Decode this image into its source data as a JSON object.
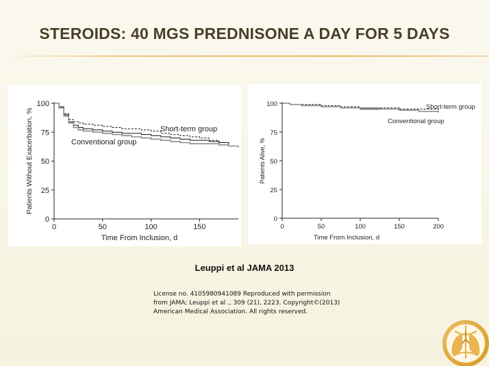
{
  "slide": {
    "title": "STEROIDS: 40 MGS PREDNISONE A DAY FOR 5 DAYS",
    "citation": "Leuppi et al JAMA 2013",
    "license_lines": [
      "License no. 4105980941089   Reproduced with permission",
      "from JAMA; Leuppi et al ., 309  (21), 2223.  Copyright©(2013)",
      "American Medical Association. All rights reserved."
    ],
    "logo_icon": "globe-lungs-logo-icon",
    "colors": {
      "title": "#4a3e28",
      "accent_rule": "#e8b560",
      "logo_gold": "#e2ad44"
    }
  },
  "chart_data": [
    {
      "type": "line",
      "title": "",
      "xlabel": "Time From Inclusion, d",
      "ylabel": "Patients Without Exacerbation, %",
      "xlim": [
        0,
        190
      ],
      "ylim": [
        0,
        100
      ],
      "x_ticks": [
        0,
        50,
        100,
        150
      ],
      "y_ticks": [
        0,
        25,
        50,
        75,
        100
      ],
      "grid": false,
      "series": [
        {
          "name": "Short-term group",
          "style": "dashed",
          "color": "#111111",
          "x": [
            0,
            5,
            10,
            15,
            20,
            25,
            30,
            40,
            50,
            60,
            70,
            80,
            90,
            100,
            110,
            120,
            130,
            140,
            150,
            160,
            170,
            180,
            190
          ],
          "y": [
            100,
            97,
            91,
            86,
            84,
            83,
            82,
            81,
            80,
            79,
            78,
            78,
            77,
            76,
            74,
            73,
            72,
            71,
            70,
            68,
            66,
            63,
            62
          ]
        },
        {
          "name": "Conventional group",
          "style": "solid",
          "color": "#111111",
          "x": [
            0,
            5,
            10,
            15,
            20,
            25,
            30,
            40,
            50,
            60,
            70,
            80,
            90,
            100,
            110,
            120,
            130,
            140,
            150,
            160,
            170,
            180,
            190
          ],
          "y": [
            100,
            97,
            90,
            84,
            81,
            79,
            78,
            77,
            76,
            75,
            74,
            74,
            73,
            72,
            71,
            70,
            69,
            68,
            68,
            67,
            66,
            63,
            62
          ]
        },
        {
          "name": "",
          "style": "solid",
          "color": "#8a8a8a",
          "x": [
            0,
            5,
            10,
            15,
            20,
            25,
            30,
            40,
            50,
            60,
            70,
            80,
            90,
            100,
            110,
            120,
            130,
            140,
            150,
            160,
            170,
            180,
            190
          ],
          "y": [
            100,
            96,
            89,
            83,
            79,
            77,
            76,
            75,
            74,
            73,
            72,
            71,
            70,
            69,
            68,
            67,
            66,
            65,
            65,
            65,
            64,
            63,
            62
          ]
        }
      ],
      "legend": [
        {
          "text": "Short-term group",
          "placement": "upper-right"
        },
        {
          "text": "Conventional group",
          "placement": "middle-left"
        }
      ]
    },
    {
      "type": "line",
      "title": "",
      "xlabel": "Time From Inclusion, d",
      "ylabel": "Patients Alive, %",
      "xlim": [
        0,
        200
      ],
      "ylim": [
        0,
        100
      ],
      "x_ticks": [
        0,
        50,
        100,
        150,
        200
      ],
      "y_ticks": [
        0,
        25,
        50,
        75,
        100
      ],
      "grid": false,
      "series": [
        {
          "name": "Short-term group",
          "style": "dashed",
          "color": "#111111",
          "x": [
            0,
            10,
            25,
            50,
            75,
            100,
            125,
            150,
            175,
            200
          ],
          "y": [
            100,
            99,
            99,
            98,
            97,
            96,
            96,
            95,
            95,
            94
          ]
        },
        {
          "name": "Conventional group",
          "style": "solid",
          "color": "#111111",
          "x": [
            0,
            10,
            25,
            50,
            75,
            100,
            125,
            150,
            175,
            200
          ],
          "y": [
            100,
            99,
            98,
            97,
            96,
            95,
            95,
            94,
            93,
            92
          ]
        },
        {
          "name": "",
          "style": "solid",
          "color": "#8a8a8a",
          "x": [
            0,
            10,
            25,
            50,
            75,
            100,
            125,
            150,
            175,
            200
          ],
          "y": [
            100,
            99,
            98,
            97,
            96,
            96,
            95,
            94,
            93,
            93
          ]
        }
      ],
      "legend": [
        {
          "text": "Short-term group",
          "placement": "upper-right"
        },
        {
          "text": "Conventional group",
          "placement": "upper-right-below"
        }
      ]
    }
  ]
}
